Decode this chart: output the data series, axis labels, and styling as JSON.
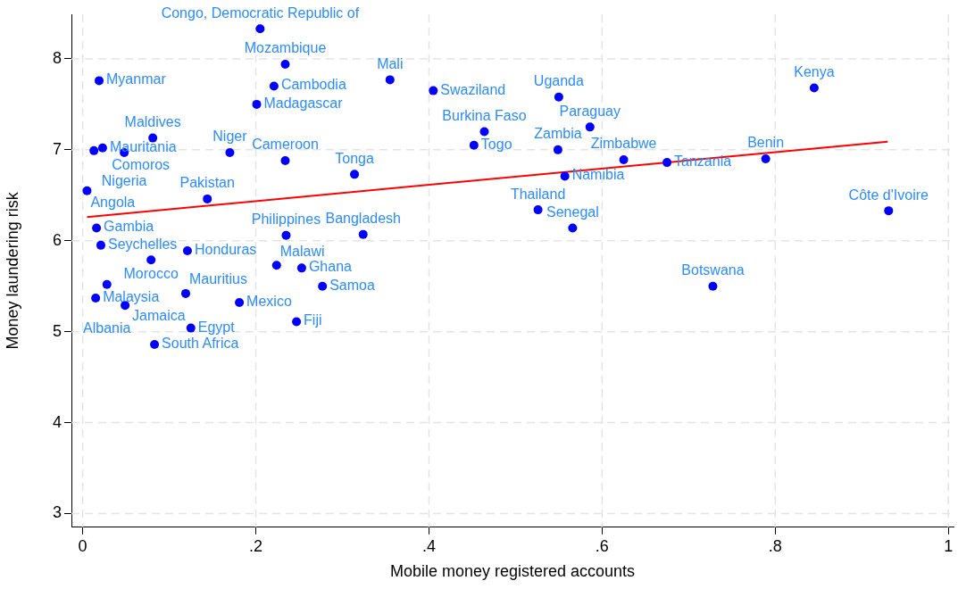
{
  "chart_data": {
    "type": "scatter",
    "xlabel": "Mobile money registered accounts",
    "ylabel": "Money laundering risk",
    "xlim": [
      -0.013,
      1.006
    ],
    "ylim": [
      2.85,
      8.49
    ],
    "xticks": [
      0,
      {
        "value": 0.2,
        "label": ".2"
      },
      {
        "value": 0.4,
        "label": ".4"
      },
      {
        "value": 0.6,
        "label": ".6"
      },
      {
        "value": 0.8,
        "label": ".8"
      },
      1
    ],
    "yticks": [
      3,
      4,
      5,
      6,
      7,
      8
    ],
    "grid": true,
    "legend": false,
    "series": [
      {
        "type": "scatter",
        "color": "#0000ff",
        "marker": "circle",
        "x": [
          0.205,
          0.234,
          0.019,
          0.221,
          0.201,
          0.081,
          0.013,
          0.023,
          0.048,
          0.17,
          0.234,
          0.005,
          0.144,
          0.016,
          0.021,
          0.235,
          0.121,
          0.079,
          0.224,
          0.253,
          0.028,
          0.015,
          0.049,
          0.119,
          0.181,
          0.125,
          0.083,
          0.247,
          0.277,
          0.355,
          0.405,
          0.55,
          0.464,
          0.452,
          0.586,
          0.549,
          0.625,
          0.557,
          0.314,
          0.324,
          0.526,
          0.566,
          0.845,
          0.675,
          0.789,
          0.931,
          0.728
        ],
        "values": [
          8.33,
          7.94,
          7.76,
          7.7,
          7.5,
          7.13,
          6.99,
          7.02,
          6.97,
          6.97,
          6.88,
          6.55,
          6.46,
          6.14,
          5.95,
          6.06,
          5.89,
          5.79,
          5.73,
          5.7,
          5.52,
          5.37,
          5.29,
          5.42,
          5.32,
          5.04,
          4.86,
          5.11,
          5.5,
          7.77,
          7.65,
          7.58,
          7.2,
          7.05,
          7.25,
          7.0,
          6.89,
          6.71,
          6.73,
          6.07,
          6.34,
          6.14,
          7.68,
          6.86,
          6.9,
          6.33,
          5.5
        ]
      },
      {
        "type": "line",
        "color": "#ff0000",
        "marker": "none",
        "line_style": "solid",
        "x": [
          0.005,
          0.93
        ],
        "values": [
          6.26,
          7.09
        ]
      }
    ],
    "annotations": [
      {
        "text": "Congo, Democratic Republic of",
        "x": 0.205,
        "y": 8.33
      },
      {
        "text": "Mozambique",
        "x": 0.234,
        "y": 7.94
      },
      {
        "text": "Myanmar",
        "x": 0.019,
        "y": 7.76
      },
      {
        "text": "Cambodia",
        "x": 0.221,
        "y": 7.7
      },
      {
        "text": "Madagascar",
        "x": 0.201,
        "y": 7.5
      },
      {
        "text": "Maldives",
        "x": 0.081,
        "y": 7.13
      },
      {
        "text": "Comoros",
        "x": 0.013,
        "y": 6.99
      },
      {
        "text": "Mauritania",
        "x": 0.023,
        "y": 7.02
      },
      {
        "text": "Nigeria",
        "x": 0.048,
        "y": 6.97
      },
      {
        "text": "Niger",
        "x": 0.17,
        "y": 6.97
      },
      {
        "text": "Cameroon",
        "x": 0.234,
        "y": 6.88
      },
      {
        "text": "Angola",
        "x": 0.005,
        "y": 6.55
      },
      {
        "text": "Pakistan",
        "x": 0.144,
        "y": 6.46
      },
      {
        "text": "Gambia",
        "x": 0.016,
        "y": 6.14
      },
      {
        "text": "Seychelles",
        "x": 0.021,
        "y": 5.95
      },
      {
        "text": "Philippines",
        "x": 0.235,
        "y": 6.06
      },
      {
        "text": "Honduras",
        "x": 0.121,
        "y": 5.89
      },
      {
        "text": "Morocco",
        "x": 0.079,
        "y": 5.79
      },
      {
        "text": "Malawi",
        "x": 0.224,
        "y": 5.73
      },
      {
        "text": "Ghana",
        "x": 0.253,
        "y": 5.7
      },
      {
        "text": "Albania",
        "x": 0.028,
        "y": 5.52
      },
      {
        "text": "Malaysia",
        "x": 0.015,
        "y": 5.37
      },
      {
        "text": "Jamaica",
        "x": 0.049,
        "y": 5.29
      },
      {
        "text": "Mauritius",
        "x": 0.119,
        "y": 5.42
      },
      {
        "text": "Mexico",
        "x": 0.181,
        "y": 5.32
      },
      {
        "text": "Egypt",
        "x": 0.125,
        "y": 5.04
      },
      {
        "text": "South Africa",
        "x": 0.083,
        "y": 4.86
      },
      {
        "text": "Fiji",
        "x": 0.247,
        "y": 5.11
      },
      {
        "text": "Samoa",
        "x": 0.277,
        "y": 5.5
      },
      {
        "text": "Mali",
        "x": 0.355,
        "y": 7.77
      },
      {
        "text": "Swaziland",
        "x": 0.405,
        "y": 7.65
      },
      {
        "text": "Uganda",
        "x": 0.55,
        "y": 7.58
      },
      {
        "text": "Burkina Faso",
        "x": 0.464,
        "y": 7.2
      },
      {
        "text": "Togo",
        "x": 0.452,
        "y": 7.05
      },
      {
        "text": "Paraguay",
        "x": 0.586,
        "y": 7.25
      },
      {
        "text": "Zambia",
        "x": 0.549,
        "y": 7.0
      },
      {
        "text": "Zimbabwe",
        "x": 0.625,
        "y": 6.89
      },
      {
        "text": "Namibia",
        "x": 0.557,
        "y": 6.71
      },
      {
        "text": "Tonga",
        "x": 0.314,
        "y": 6.73
      },
      {
        "text": "Bangladesh",
        "x": 0.324,
        "y": 6.07
      },
      {
        "text": "Thailand",
        "x": 0.526,
        "y": 6.34
      },
      {
        "text": "Senegal",
        "x": 0.566,
        "y": 6.14
      },
      {
        "text": "Kenya",
        "x": 0.845,
        "y": 7.68
      },
      {
        "text": "Tanzania",
        "x": 0.675,
        "y": 6.86
      },
      {
        "text": "Benin",
        "x": 0.789,
        "y": 6.9
      },
      {
        "text": "Côte d'Ivoire",
        "x": 0.931,
        "y": 6.33
      },
      {
        "text": "Botswana",
        "x": 0.728,
        "y": 5.5
      }
    ]
  }
}
